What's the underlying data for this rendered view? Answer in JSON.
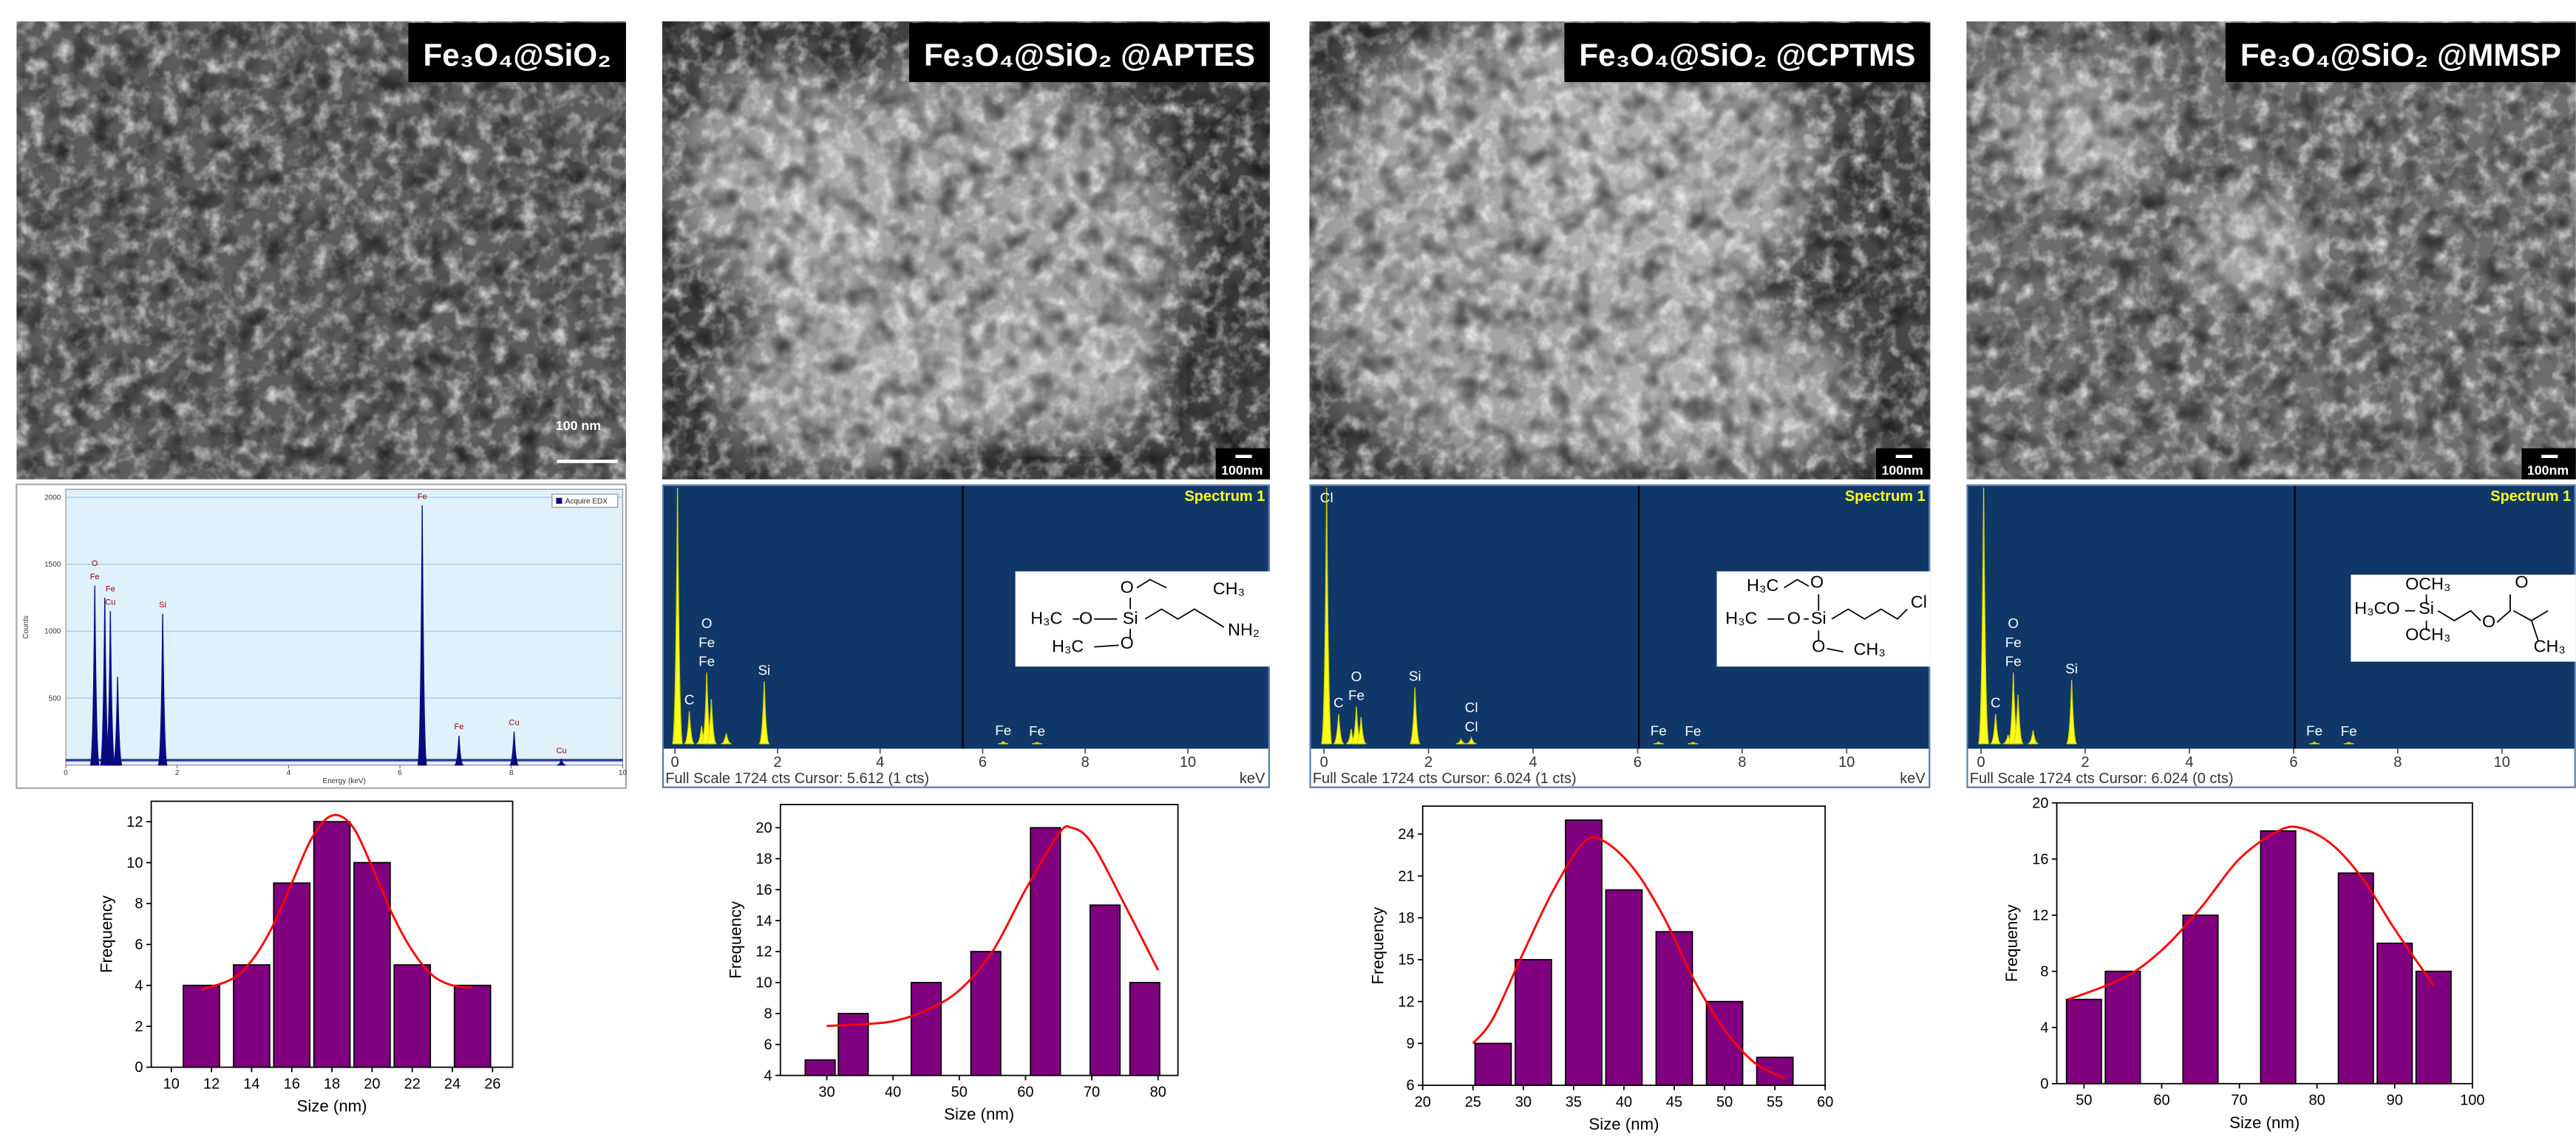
{
  "figure_panels": [
    {
      "label": "Fe₃O₄@SiO₂",
      "scale_bar": "100 nm"
    },
    {
      "label": "Fe₃O₄@SiO₂ @APTES",
      "scale_bar": "100nm"
    },
    {
      "label": "Fe₃O₄@SiO₂ @CPTMS",
      "scale_bar": "100nm"
    },
    {
      "label": "Fe₃O₄@SiO₂ @MMSP",
      "scale_bar": "100nm"
    }
  ],
  "chart_data": [
    {
      "type": "spectrum",
      "style": "light",
      "x_label": "Energy (keV)",
      "y_label": "Counts",
      "legend": "Acquire EDX",
      "color": "#0a0a80",
      "x": [
        0.52,
        0.7,
        0.8,
        0.93,
        1.74,
        6.4,
        7.06,
        8.05,
        8.9
      ],
      "values": [
        1340,
        1250,
        1150,
        660,
        1130,
        1940,
        220,
        250,
        40
      ],
      "peak_labels": [
        "O",
        "Fe",
        "Fe",
        "Cu",
        "Si",
        "Fe",
        "Fe",
        "Cu",
        "Cu"
      ],
      "xlim": [
        0,
        10
      ],
      "xticks": [
        0,
        2,
        4,
        6,
        8,
        10
      ],
      "ylim": [
        0,
        2060
      ],
      "yticks": [
        500,
        1000,
        1500,
        2000
      ],
      "grid": true
    },
    {
      "type": "spectrum",
      "style": "dark",
      "title": "Spectrum 1",
      "footer": "Full Scale 1724 cts Cursor: 5.612  (1 cts)",
      "unit": "keV",
      "cursor": 5.612,
      "color": "#ffff1a",
      "x": [
        0.05,
        0.28,
        0.52,
        0.62,
        0.71,
        1.0,
        1.74,
        6.4,
        7.06
      ],
      "values": [
        1724,
        220,
        120,
        480,
        300,
        70,
        420,
        15,
        10
      ],
      "peak_labels": [
        null,
        "C",
        "O",
        "Fe",
        "Fe",
        null,
        "Si",
        "Fe",
        "Fe"
      ],
      "xlim": [
        -0.25,
        11.6
      ],
      "xticks": [
        0,
        2,
        4,
        6,
        8,
        10
      ],
      "ylim": [
        0,
        1724
      ],
      "structure": [
        "O",
        "CH₃",
        "H₃C",
        "O",
        "Si",
        "NH₂",
        "H₃C",
        "O"
      ]
    },
    {
      "type": "spectrum",
      "style": "dark",
      "title": "Spectrum 1",
      "footer": "Full Scale 1724 cts Cursor: 6.024  (1 cts)",
      "unit": "keV",
      "cursor": 6.024,
      "color": "#ffff1a",
      "x": [
        0.05,
        0.28,
        0.52,
        0.62,
        0.71,
        1.74,
        2.62,
        2.82,
        6.4,
        7.06
      ],
      "values": [
        1724,
        200,
        100,
        250,
        180,
        380,
        30,
        40,
        12,
        10
      ],
      "peak_labels": [
        "Cl",
        "C",
        "O",
        "Fe",
        null,
        "Si",
        "Cl",
        "Cl",
        "Fe",
        "Fe"
      ],
      "xlim": [
        -0.28,
        11.6
      ],
      "xticks": [
        0,
        2,
        4,
        6,
        8,
        10
      ],
      "ylim": [
        0,
        1724
      ],
      "structure": [
        "H₃C",
        "O",
        "H₃C",
        "O",
        "Si",
        "Cl",
        "O",
        "CH₃"
      ]
    },
    {
      "type": "spectrum",
      "style": "dark",
      "title": "Spectrum 1",
      "footer": "Full Scale 1724 cts Cursor: 6.024  (0 cts)",
      "cursor": 6.024,
      "color": "#ffff1a",
      "x": [
        0.05,
        0.28,
        0.52,
        0.62,
        0.71,
        1.0,
        1.74,
        6.4,
        7.06
      ],
      "values": [
        1724,
        200,
        60,
        480,
        330,
        90,
        430,
        12,
        10
      ],
      "peak_labels": [
        null,
        "C",
        "O",
        "Fe",
        "Fe",
        null,
        "Si",
        "Fe",
        "Fe"
      ],
      "xlim": [
        -0.28,
        11.42
      ],
      "xticks": [
        0,
        2,
        4,
        6,
        8,
        10
      ],
      "ylim": [
        0,
        1724
      ],
      "structure": [
        "OCH₃",
        "H₃CO",
        "Si",
        "OCH₃",
        "O",
        "O",
        "CH₃"
      ]
    },
    {
      "type": "bar",
      "x_label": "Size (nm)",
      "y_label": "Frequency",
      "color": "#800080",
      "fit_color": "#ff0000",
      "x": [
        11.5,
        14,
        16,
        18,
        20,
        22,
        25
      ],
      "values": [
        4,
        5,
        9,
        12,
        10,
        5,
        4
      ],
      "fit_x": [
        11.5,
        13,
        14,
        15,
        16,
        17,
        18,
        19,
        20,
        21,
        22,
        23,
        24,
        25
      ],
      "fit_values": [
        3.8,
        4.3,
        5.2,
        6.8,
        9,
        11.2,
        12.3,
        11.8,
        9.8,
        7.5,
        5.7,
        4.5,
        4.0,
        3.9
      ],
      "xlim": [
        9,
        27
      ],
      "xticks": [
        10,
        12,
        14,
        16,
        18,
        20,
        22,
        24,
        26
      ],
      "ylim": [
        0,
        13
      ],
      "yticks": [
        0,
        2,
        4,
        6,
        8,
        10,
        12
      ]
    },
    {
      "type": "bar",
      "x_label": "Size (nm)",
      "y_label": "Frequency",
      "color": "#800080",
      "fit_color": "#ff0000",
      "x": [
        29,
        34,
        45,
        54,
        63,
        72,
        78
      ],
      "values": [
        5,
        8,
        10,
        12,
        20,
        15,
        10
      ],
      "fit_x": [
        30,
        35,
        40,
        45,
        50,
        55,
        60,
        65,
        67,
        70,
        75,
        80
      ],
      "fit_values": [
        7.2,
        7.3,
        7.5,
        8.2,
        9.5,
        12,
        16,
        19.6,
        20,
        19,
        15,
        10.8
      ],
      "xlim": [
        23,
        83
      ],
      "xticks": [
        30,
        40,
        50,
        60,
        70,
        80
      ],
      "ylim": [
        4,
        21.5
      ],
      "yticks": [
        4,
        6,
        8,
        10,
        12,
        14,
        16,
        18,
        20
      ]
    },
    {
      "type": "bar",
      "x_label": "Size (nm)",
      "y_label": "Frequency",
      "color": "#800080",
      "fit_color": "#ff0000",
      "x": [
        27,
        31,
        36,
        40,
        45,
        50,
        55
      ],
      "values": [
        9,
        15,
        25,
        20,
        17,
        12,
        8
      ],
      "fit_x": [
        25,
        27,
        30,
        33,
        36,
        38,
        41,
        44,
        47,
        50,
        53,
        56
      ],
      "fit_values": [
        9,
        10.8,
        15.5,
        20,
        23.4,
        23.5,
        21.5,
        18,
        13.5,
        10,
        7.6,
        6.5
      ],
      "xlim": [
        20,
        60
      ],
      "xticks": [
        20,
        25,
        30,
        35,
        40,
        45,
        50,
        55,
        60
      ],
      "ylim": [
        6,
        26
      ],
      "yticks": [
        6,
        9,
        12,
        15,
        18,
        21,
        24
      ]
    },
    {
      "type": "bar",
      "x_label": "Size (nm)",
      "y_label": "Frequency",
      "color": "#800080",
      "fit_color": "#ff0000",
      "x": [
        50,
        55,
        65,
        75,
        85,
        90,
        95
      ],
      "values": [
        6,
        8,
        12,
        18,
        15,
        10,
        8
      ],
      "fit_x": [
        48,
        55,
        60,
        65,
        70,
        75,
        78,
        82,
        86,
        90,
        95
      ],
      "fit_values": [
        6,
        7.5,
        9.5,
        12.5,
        16,
        18,
        18.2,
        17,
        14.5,
        11,
        7
      ],
      "xlim": [
        46.5,
        100
      ],
      "xticks": [
        50,
        60,
        70,
        80,
        90,
        100
      ],
      "ylim": [
        0,
        20
      ],
      "yticks": [
        0,
        4,
        8,
        12,
        16,
        20
      ]
    }
  ]
}
